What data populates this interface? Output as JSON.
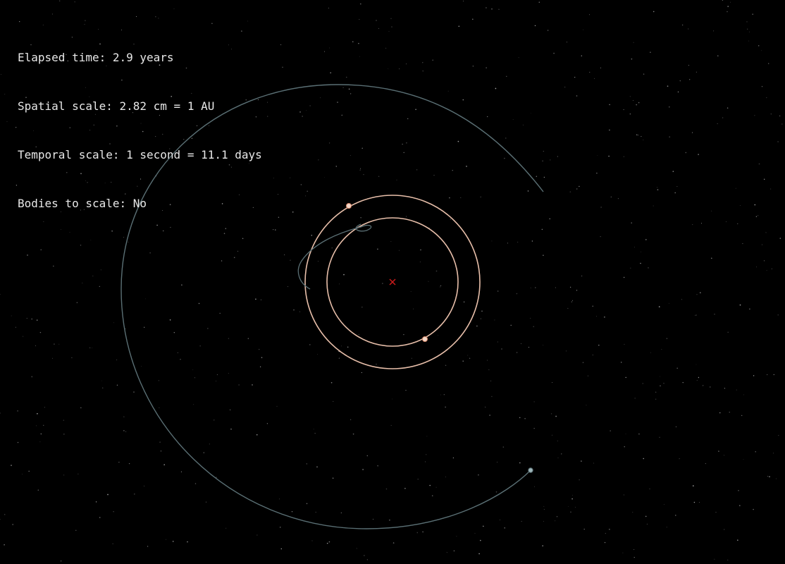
{
  "hud": {
    "elapsed": "Elapsed time: 2.9 years",
    "spatial": "Spatial scale: 2.82 cm = 1 AU",
    "temporal": "Temporal scale: 1 second = 11.1 days",
    "bodies": "Bodies to scale: No"
  },
  "colors": {
    "background": "#000000",
    "planet_orbit": "#e8bfaa",
    "probe_trail": "#5a6f74",
    "sun_marker": "#cc1a1a",
    "stars": "#bfbfbf"
  },
  "scene": {
    "center_marker": "cross",
    "planets": [
      {
        "name": "inner-planet",
        "icon": "planet-marker"
      },
      {
        "name": "outer-planet",
        "icon": "planet-marker"
      }
    ],
    "probe": {
      "icon": "probe-marker"
    }
  }
}
